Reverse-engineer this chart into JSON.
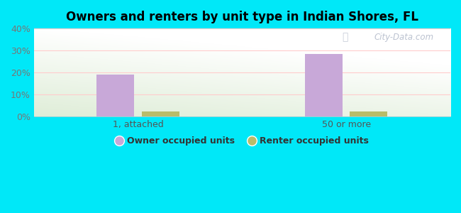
{
  "title": "Owners and renters by unit type in Indian Shores, FL",
  "categories": [
    "1, attached",
    "50 or more"
  ],
  "owner_values": [
    19.0,
    28.5
  ],
  "renter_values": [
    2.2,
    2.2
  ],
  "owner_color": "#c8a8d8",
  "renter_color": "#b8bc6a",
  "ylim": [
    0,
    40
  ],
  "yticks": [
    0,
    10,
    20,
    30,
    40
  ],
  "ytick_labels": [
    "0%",
    "10%",
    "20%",
    "30%",
    "40%"
  ],
  "background_outer": "#00e8f8",
  "legend_owner": "Owner occupied units",
  "legend_renter": "Renter occupied units",
  "watermark": "City-Data.com",
  "bar_width": 0.18,
  "title_fontsize": 12
}
